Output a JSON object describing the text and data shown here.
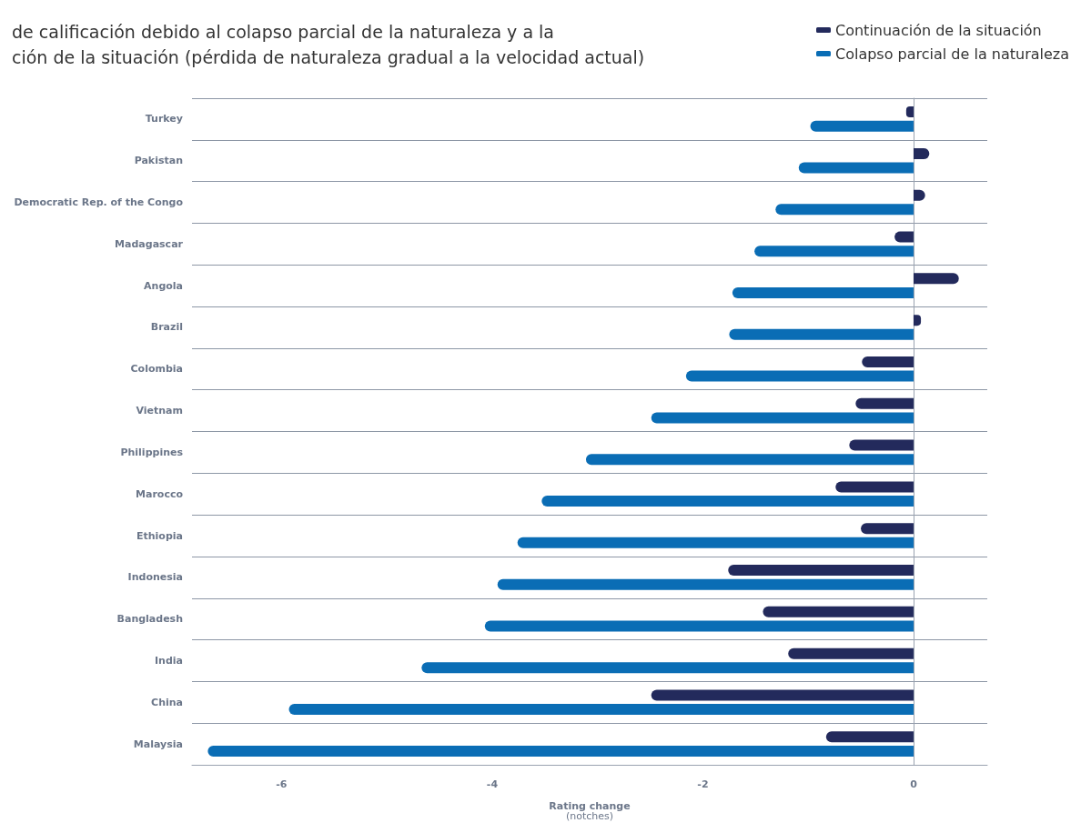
{
  "chart_data": {
    "type": "bar",
    "orientation": "horizontal",
    "title": "de calificación debido al colapso parcial de la naturaleza y a la\nción de la situación (pérdida de naturaleza gradual a la velocidad actual)",
    "xlabel": "Rating change\n(notches)",
    "categories": [
      "Turkey",
      "Pakistan",
      "Democratic Rep. of the Congo",
      "Madagascar",
      "Angola",
      "Brazil",
      "Colombia",
      "Vietnam",
      "Philippines",
      "Marocco",
      "Ethiopia",
      "Indonesia",
      "Bangladesh",
      "India",
      "China",
      "Malaysia"
    ],
    "series": [
      {
        "name": "Continuación de la situación",
        "color": "#232a5c",
        "values": [
          -0.07,
          0.15,
          0.11,
          -0.18,
          0.43,
          0.07,
          -0.49,
          -0.55,
          -0.61,
          -0.74,
          -0.5,
          -1.76,
          -1.43,
          -1.19,
          -2.49,
          -0.83
        ]
      },
      {
        "name": "Colapso parcial de la naturaleza",
        "color": "#0a6db5",
        "values": [
          -0.98,
          -1.09,
          -1.31,
          -1.51,
          -1.72,
          -1.75,
          -2.16,
          -2.49,
          -3.11,
          -3.53,
          -3.76,
          -3.95,
          -4.07,
          -4.67,
          -5.93,
          -6.7
        ]
      }
    ],
    "xlim": [
      -6.85,
      0.7
    ],
    "xticks": [
      -6,
      -4,
      -2,
      0
    ],
    "grid": "y",
    "legend": "top right"
  }
}
